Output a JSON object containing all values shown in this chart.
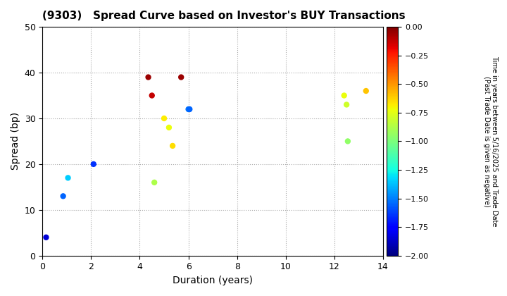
{
  "title": "(9303)   Spread Curve based on Investor's BUY Transactions",
  "xlabel": "Duration (years)",
  "ylabel": "Spread (bp)",
  "colorbar_label": "Time in years between 5/16/2025 and Trade Date\n(Past Trade Date is given as negative)",
  "points": [
    {
      "duration": 0.15,
      "spread": 4,
      "time": -1.85
    },
    {
      "duration": 0.85,
      "spread": 13,
      "time": -1.55
    },
    {
      "duration": 1.05,
      "spread": 17,
      "time": -1.35
    },
    {
      "duration": 2.1,
      "spread": 20,
      "time": -1.65
    },
    {
      "duration": 4.35,
      "spread": 39,
      "time": -0.05
    },
    {
      "duration": 4.5,
      "spread": 35,
      "time": -0.12
    },
    {
      "duration": 4.6,
      "spread": 16,
      "time": -0.88
    },
    {
      "duration": 5.0,
      "spread": 30,
      "time": -0.68
    },
    {
      "duration": 5.2,
      "spread": 28,
      "time": -0.73
    },
    {
      "duration": 5.35,
      "spread": 24,
      "time": -0.65
    },
    {
      "duration": 5.7,
      "spread": 39,
      "time": -0.05
    },
    {
      "duration": 6.0,
      "spread": 32,
      "time": -1.52
    },
    {
      "duration": 6.05,
      "spread": 32,
      "time": -1.55
    },
    {
      "duration": 12.4,
      "spread": 35,
      "time": -0.73
    },
    {
      "duration": 12.5,
      "spread": 33,
      "time": -0.8
    },
    {
      "duration": 12.55,
      "spread": 25,
      "time": -0.95
    },
    {
      "duration": 13.3,
      "spread": 36,
      "time": -0.6
    }
  ],
  "xlim": [
    0,
    14
  ],
  "ylim": [
    0,
    50
  ],
  "xticks": [
    0,
    2,
    4,
    6,
    8,
    10,
    12,
    14
  ],
  "yticks": [
    0,
    10,
    20,
    30,
    40,
    50
  ],
  "cmap": "jet",
  "clim": [
    -2.0,
    0.0
  ],
  "cticks": [
    0.0,
    -0.25,
    -0.5,
    -0.75,
    -1.0,
    -1.25,
    -1.5,
    -1.75,
    -2.0
  ],
  "marker_size": 25,
  "background_color": "#ffffff",
  "grid_color": "#aaaaaa",
  "title_fontsize": 11,
  "axis_fontsize": 10,
  "tick_fontsize": 9,
  "cbar_tick_fontsize": 8,
  "cbar_label_fontsize": 7
}
